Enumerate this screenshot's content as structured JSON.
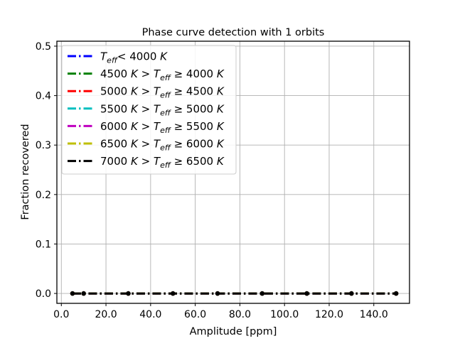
{
  "chart_data": {
    "type": "line",
    "title": "Phase curve detection with 1 orbits",
    "xlabel": "Amplitude [ppm]",
    "ylabel": "Fraction recovered",
    "xlim": [
      -2,
      156
    ],
    "ylim": [
      -0.02,
      0.51
    ],
    "xticks": [
      0,
      20,
      40,
      60,
      80,
      100,
      120,
      140
    ],
    "xtick_labels": [
      "0.0",
      "20.0",
      "40.0",
      "60.0",
      "80.0",
      "100.0",
      "120.0",
      "140.0"
    ],
    "yticks": [
      0.0,
      0.1,
      0.2,
      0.3,
      0.4,
      0.5
    ],
    "ytick_labels": [
      "0.0",
      "0.1",
      "0.2",
      "0.3",
      "0.4",
      "0.5"
    ],
    "grid": true,
    "legend_position": "top-left",
    "line_style": "dash-dot",
    "x": [
      5,
      10,
      30,
      50,
      70,
      90,
      110,
      130,
      150
    ],
    "series": [
      {
        "name": "T_eff < 4000 K",
        "color": "#0000ff",
        "values": [
          0,
          0,
          0,
          0,
          0,
          0,
          0,
          0,
          0
        ],
        "legend": {
          "pre": "",
          "mid": "< 4000",
          "post": " K",
          "teff_first": true
        }
      },
      {
        "name": "4500 K > T_eff ≥ 4000 K",
        "color": "#008000",
        "values": [
          0,
          0,
          0,
          0,
          0,
          0,
          0,
          0,
          0
        ],
        "legend": {
          "pre": "4500",
          "k1": " K",
          "gt": " > ",
          "ge": " ≥ 4000",
          "post": " K"
        }
      },
      {
        "name": "5000 K > T_eff ≥ 4500 K",
        "color": "#ff0000",
        "values": [
          0,
          0,
          0,
          0,
          0,
          0,
          0,
          0,
          0
        ],
        "legend": {
          "pre": "5000",
          "k1": " K",
          "gt": " > ",
          "ge": " ≥ 4500",
          "post": " K"
        }
      },
      {
        "name": "5500 K > T_eff ≥ 5000 K",
        "color": "#00bfbf",
        "values": [
          0,
          0,
          0,
          0,
          0,
          0,
          0,
          0,
          0
        ],
        "legend": {
          "pre": "5500",
          "k1": " K",
          "gt": " > ",
          "ge": " ≥ 5000",
          "post": " K"
        }
      },
      {
        "name": "6000 K > T_eff ≥ 5500 K",
        "color": "#bf00bf",
        "values": [
          0,
          0,
          0,
          0,
          0,
          0,
          0,
          0,
          0
        ],
        "legend": {
          "pre": "6000",
          "k1": " K",
          "gt": " > ",
          "ge": " ≥ 5500",
          "post": " K"
        }
      },
      {
        "name": "6500 K > T_eff ≥ 6000 K",
        "color": "#bfbf00",
        "values": [
          0,
          0,
          0,
          0,
          0,
          0,
          0,
          0,
          0
        ],
        "legend": {
          "pre": "6500",
          "k1": " K",
          "gt": " > ",
          "ge": " ≥ 6000",
          "post": " K"
        }
      },
      {
        "name": "7000 K > T_eff ≥ 6500 K",
        "color": "#000000",
        "values": [
          0,
          0,
          0,
          0,
          0,
          0,
          0,
          0,
          0
        ],
        "legend": {
          "pre": "7000",
          "k1": " K",
          "gt": " > ",
          "ge": " ≥ 6500",
          "post": " K"
        }
      }
    ],
    "teff_symbol": "T",
    "teff_sub": "eff"
  }
}
